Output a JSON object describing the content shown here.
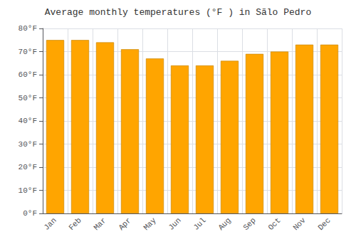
{
  "chart_data": {
    "type": "bar",
    "title": "Average monthly temperatures (°F ) in Sãlo Pedro",
    "categories": [
      "Jan",
      "Feb",
      "Mar",
      "Apr",
      "May",
      "Jun",
      "Jul",
      "Aug",
      "Sep",
      "Oct",
      "Nov",
      "Dec"
    ],
    "values": [
      75,
      75,
      74,
      71,
      67,
      64,
      64,
      66,
      69,
      70,
      73,
      73
    ],
    "color": "#FFA500",
    "ylim": [
      0,
      80
    ],
    "yticks": [
      {
        "value": 0,
        "label": "0°F"
      },
      {
        "value": 10,
        "label": "10°F"
      },
      {
        "value": 20,
        "label": "20°F"
      },
      {
        "value": 30,
        "label": "30°F"
      },
      {
        "value": 40,
        "label": "40°F"
      },
      {
        "value": 50,
        "label": "50°F"
      },
      {
        "value": 60,
        "label": "60°F"
      },
      {
        "value": 70,
        "label": "70°F"
      },
      {
        "value": 80,
        "label": "80°F"
      }
    ],
    "grid": true
  }
}
